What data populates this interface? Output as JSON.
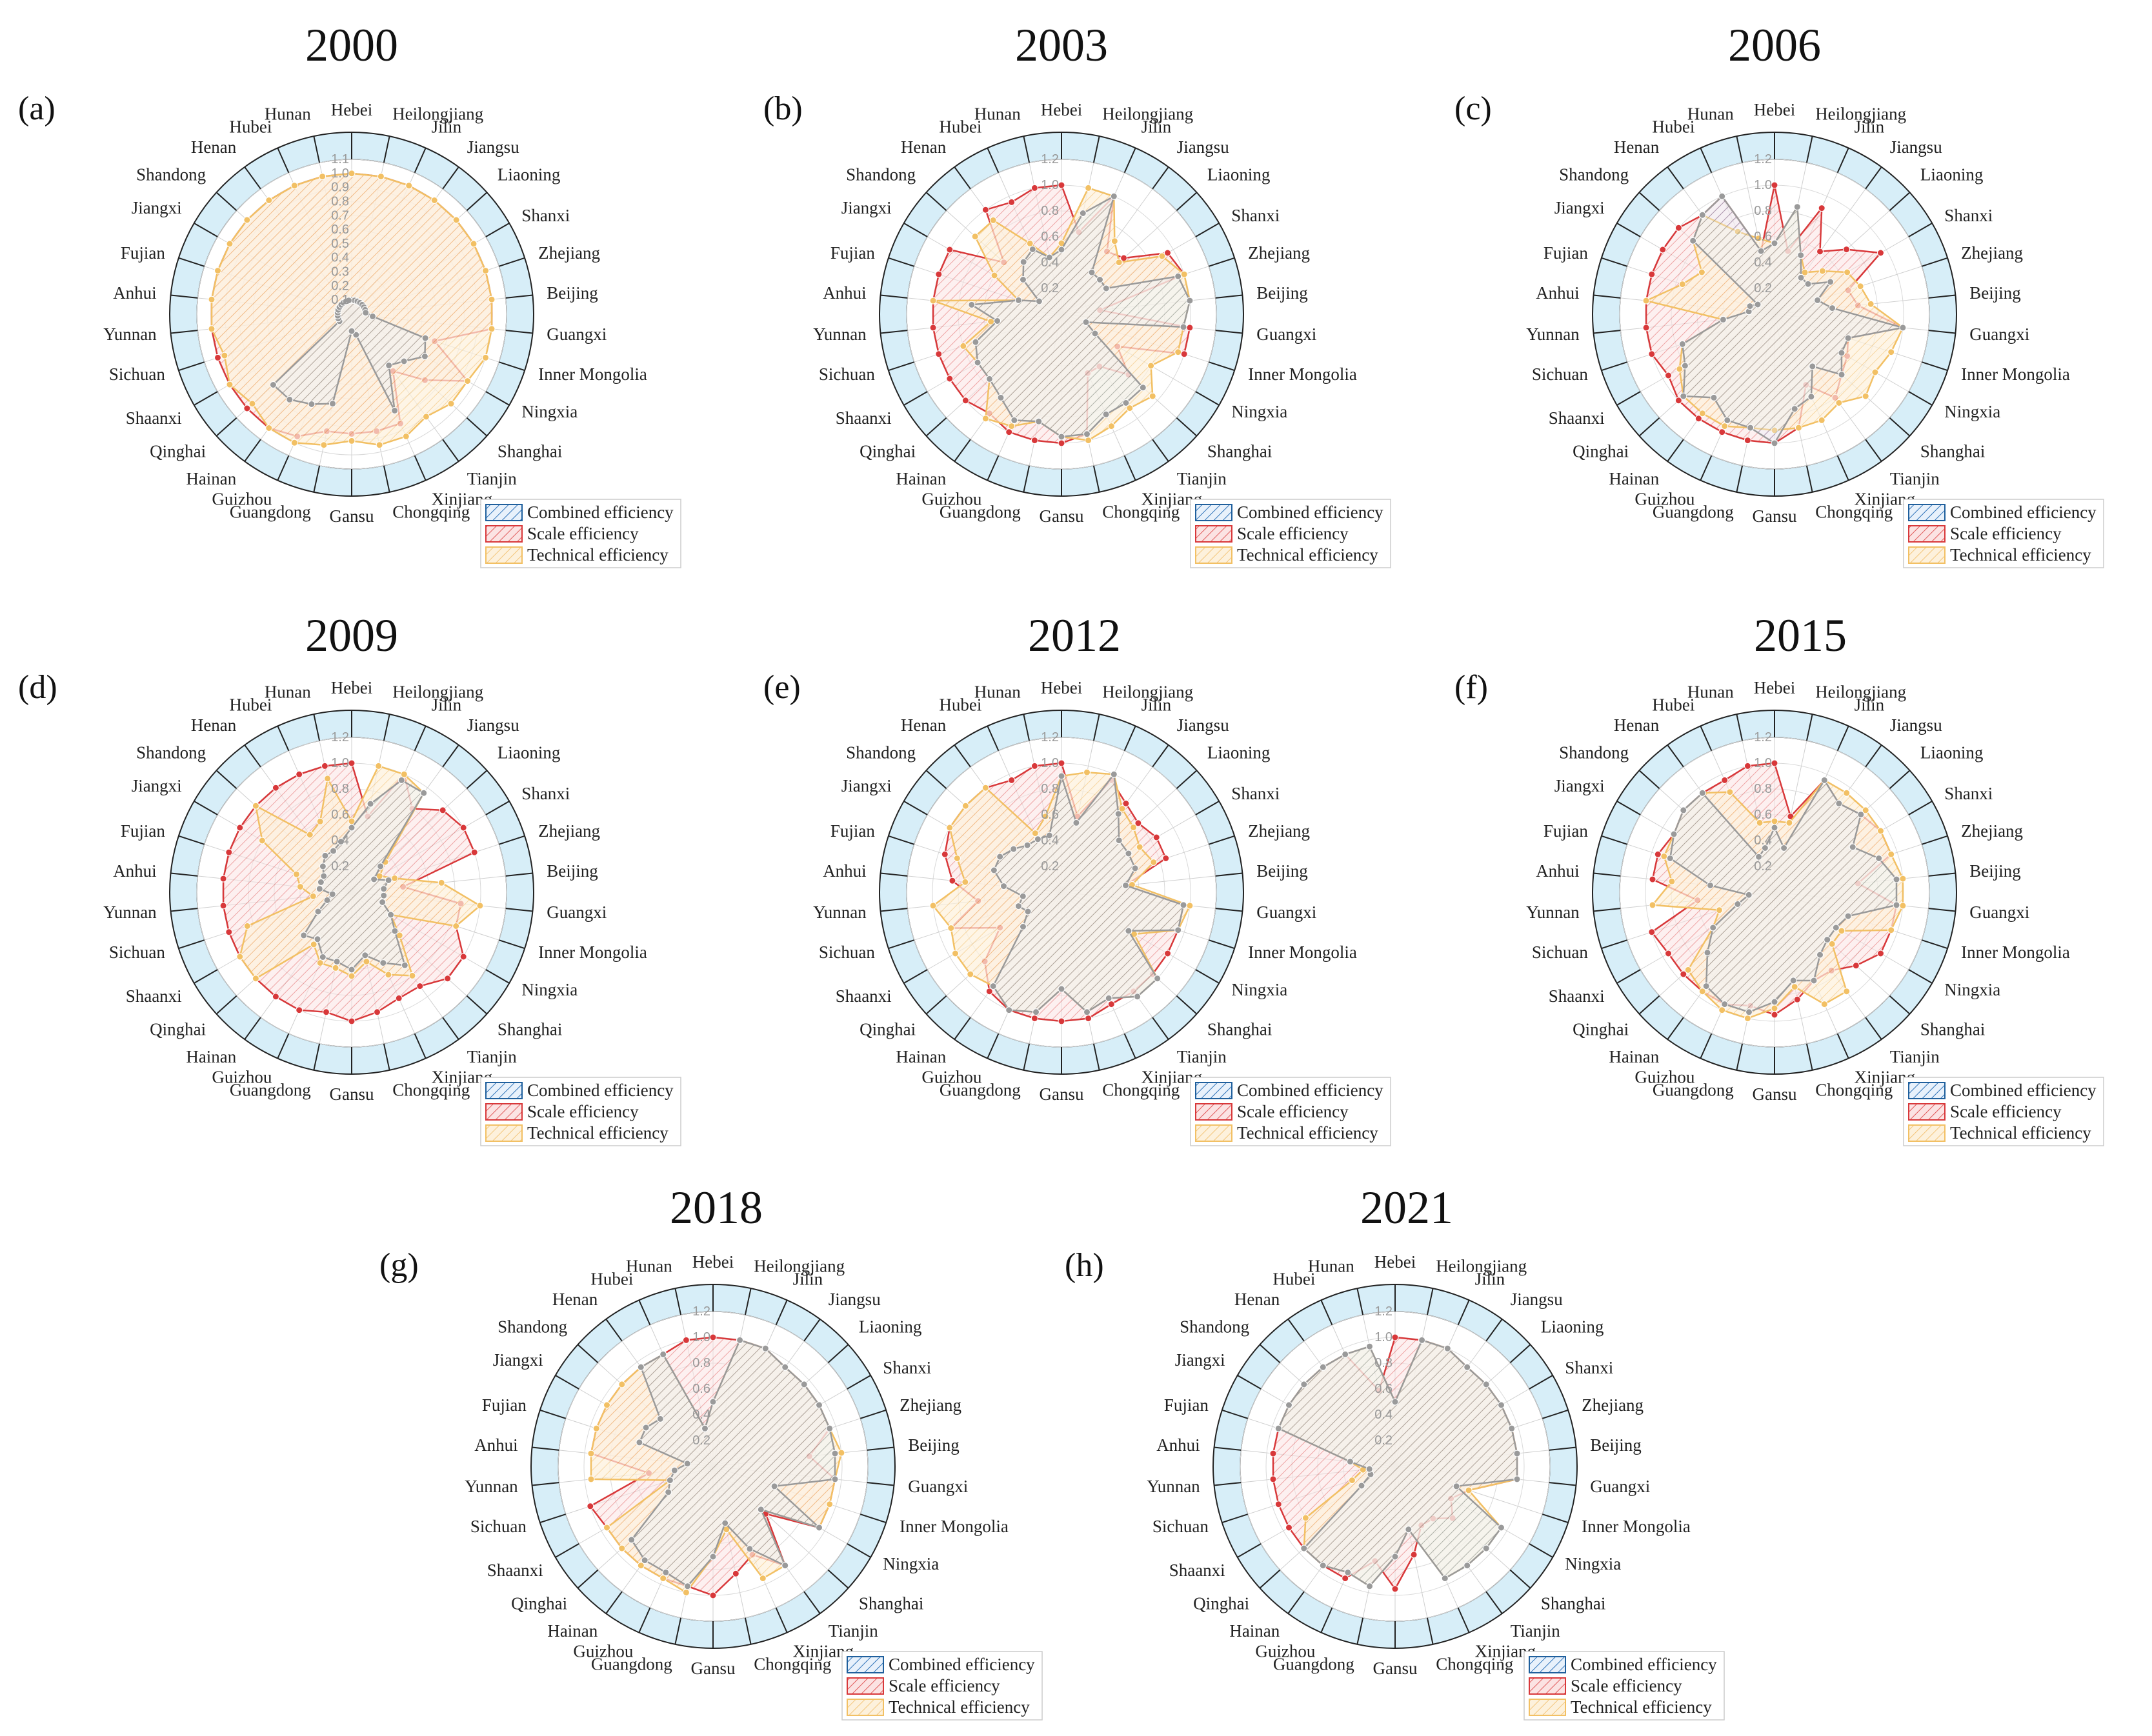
{
  "figure": {
    "palette": {
      "background_ring": "#d7eef8",
      "combined": "#1f5f9c",
      "scale": "#d8383a",
      "technical": "#f2c064",
      "combined_dot": "#9a9a9a"
    }
  },
  "chart_data": {
    "type": "radar",
    "categories": [
      "Hebei",
      "Heilongjiang",
      "Jilin",
      "Jiangsu",
      "Liaoning",
      "Shanxi",
      "Zhejiang",
      "Beijing",
      "Guangxi",
      "Inner Mongolia",
      "Ningxia",
      "Shanghai",
      "Tianjin",
      "Xinjiang",
      "Chongqing",
      "Gansu",
      "Guangdong",
      "Guizhou",
      "Hainan",
      "Qinghai",
      "Shaanxi",
      "Sichuan",
      "Yunnan",
      "Anhui",
      "Fujian",
      "Jiangxi",
      "Shandong",
      "Henan",
      "Hubei",
      "Hunan"
    ],
    "legend": [
      "Combined efficiency",
      "Scale efficiency",
      "Technical efficiency"
    ],
    "panels": [
      {
        "label": "(a)",
        "title": "2000",
        "rmax": 1.1,
        "ticks": [
          "0.1",
          "0.2",
          "0.3",
          "0.4",
          "0.5",
          "0.6",
          "0.7",
          "0.8",
          "0.9",
          "1.0",
          "1.1"
        ],
        "series": [
          {
            "name": "Combined efficiency",
            "values": [
              0.1,
              0.1,
              0.1,
              0.1,
              0.1,
              0.1,
              0.1,
              0.1,
              0.15,
              0.55,
              0.6,
              0.5,
              0.45,
              0.75,
              0.15,
              0.12,
              0.65,
              0.7,
              0.75,
              0.75,
              0.1,
              0.1,
              0.1,
              0.1,
              0.1,
              0.1,
              0.1,
              0.1,
              0.1,
              0.1
            ]
          },
          {
            "name": "Scale efficiency",
            "values": [
              1.0,
              1.0,
              1.0,
              1.0,
              1.0,
              1.0,
              1.0,
              1.0,
              1.0,
              0.62,
              0.95,
              0.7,
              0.5,
              0.85,
              0.85,
              0.85,
              0.85,
              0.95,
              1.0,
              1.0,
              1.0,
              1.0,
              1.0,
              1.0,
              1.0,
              1.0,
              1.0,
              1.0,
              1.0,
              1.0
            ]
          },
          {
            "name": "Technical efficiency",
            "values": [
              1.0,
              1.0,
              1.0,
              1.0,
              1.0,
              1.0,
              1.0,
              1.0,
              1.0,
              1.0,
              0.95,
              0.95,
              0.9,
              0.95,
              0.95,
              0.9,
              0.95,
              1.0,
              1.0,
              0.95,
              1.0,
              0.95,
              1.0,
              1.0,
              1.0,
              1.0,
              1.0,
              1.0,
              1.0,
              1.0
            ]
          }
        ]
      },
      {
        "label": "(b)",
        "title": "2003",
        "rmax": 1.2,
        "ticks": [
          "0.2",
          "0.4",
          "0.6",
          "0.8",
          "1.0",
          "1.2"
        ],
        "series": [
          {
            "name": "Combined efficiency",
            "values": [
              0.5,
              0.8,
              1.0,
              0.4,
              0.4,
              0.4,
              0.95,
              1.0,
              0.95,
              0.2,
              0.3,
              0.85,
              0.85,
              0.85,
              0.95,
              0.95,
              0.85,
              0.9,
              0.8,
              0.75,
              0.75,
              0.7,
              0.5,
              0.7,
              0.35,
              0.2,
              0.4,
              0.5,
              0.55,
              0.45
            ]
          },
          {
            "name": "Scale efficiency",
            "values": [
              1.0,
              0.65,
              1.0,
              0.6,
              0.65,
              0.95,
              1.0,
              0.3,
              1.0,
              1.0,
              0.5,
              0.7,
              0.5,
              0.5,
              0.95,
              1.0,
              1.0,
              1.0,
              0.95,
              1.0,
              1.0,
              1.0,
              1.0,
              1.0,
              1.0,
              1.0,
              0.6,
              1.0,
              0.95,
              1.0
            ]
          },
          {
            "name": "Technical efficiency",
            "values": [
              0.55,
              1.0,
              1.0,
              0.7,
              0.6,
              0.9,
              1.0,
              1.0,
              0.95,
              0.95,
              0.8,
              0.95,
              0.9,
              0.95,
              1.0,
              0.95,
              0.85,
              0.95,
              1.0,
              0.75,
              0.75,
              0.8,
              0.55,
              1.0,
              0.35,
              0.6,
              0.9,
              0.9,
              0.6,
              0.45
            ]
          }
        ]
      },
      {
        "label": "(c)",
        "title": "2006",
        "rmax": 1.2,
        "ticks": [
          "0.2",
          "0.4",
          "0.6",
          "0.8",
          "1.0",
          "1.2"
        ],
        "series": [
          {
            "name": "Combined efficiency",
            "values": [
              0.55,
              0.85,
              0.5,
              0.35,
              0.35,
              0.5,
              0.35,
              0.45,
              1.0,
              0.6,
              0.6,
              0.7,
              0.5,
              0.7,
              0.75,
              1.0,
              0.9,
              0.9,
              0.8,
              0.95,
              0.8,
              0.75,
              0.4,
              0.2,
              0.2,
              0.15,
              0.85,
              0.95,
              1.0,
              0.5
            ]
          },
          {
            "name": "Scale efficiency",
            "values": [
              1.0,
              0.5,
              0.9,
              0.6,
              0.75,
              0.95,
              0.6,
              0.65,
              1.0,
              0.6,
              0.65,
              0.7,
              0.8,
              0.6,
              0.9,
              1.0,
              1.0,
              1.0,
              1.0,
              1.0,
              0.95,
              1.0,
              1.0,
              1.0,
              1.0,
              1.0,
              1.0,
              0.95,
              1.0,
              0.5
            ]
          },
          {
            "name": "Technical efficiency",
            "values": [
              0.55,
              0.85,
              0.5,
              0.4,
              0.5,
              0.65,
              0.7,
              0.75,
              1.0,
              0.95,
              0.9,
              0.95,
              0.85,
              0.9,
              0.9,
              0.9,
              0.9,
              0.95,
              0.95,
              0.95,
              0.85,
              0.75,
              0.4,
              1.0,
              0.75,
              0.65,
              0.85,
              0.95,
              0.7,
              0.6
            ]
          }
        ]
      },
      {
        "label": "(d)",
        "title": "2009",
        "rmax": 1.2,
        "ticks": [
          "0.2",
          "0.4",
          "0.6",
          "0.8",
          "1.0",
          "1.2"
        ],
        "series": [
          {
            "name": "Combined efficiency",
            "values": [
              0.5,
              0.7,
              0.95,
              0.95,
              0.3,
              0.2,
              0.3,
              0.25,
              0.25,
              0.25,
              0.35,
              0.45,
              0.7,
              0.6,
              0.5,
              0.6,
              0.55,
              0.55,
              0.45,
              0.5,
              0.3,
              0.2,
              0.15,
              0.25,
              0.25,
              0.25,
              0.3,
              0.35,
              0.35,
              0.4
            ]
          },
          {
            "name": "Scale efficiency",
            "values": [
              1.0,
              0.6,
              1.0,
              0.8,
              0.95,
              1.0,
              1.0,
              0.4,
              0.85,
              0.85,
              1.0,
              1.0,
              0.9,
              0.9,
              0.95,
              1.0,
              0.95,
              1.0,
              1.0,
              1.0,
              1.0,
              1.0,
              1.0,
              1.0,
              1.0,
              1.0,
              1.0,
              1.0,
              1.0,
              1.0
            ]
          },
          {
            "name": "Technical efficiency",
            "values": [
              0.55,
              1.0,
              1.0,
              0.95,
              0.35,
              0.25,
              0.35,
              0.7,
              1.0,
              0.85,
              0.35,
              0.5,
              0.8,
              0.7,
              0.55,
              0.65,
              0.6,
              0.6,
              0.5,
              1.0,
              1.0,
              0.85,
              0.3,
              0.4,
              0.45,
              0.8,
              1.0,
              0.55,
              0.6,
              0.9
            ]
          }
        ]
      },
      {
        "label": "(e)",
        "title": "2012",
        "rmax": 1.2,
        "ticks": [
          "0.2",
          "0.4",
          "0.6",
          "0.8",
          "1.0",
          "1.2"
        ],
        "series": [
          {
            "name": "Combined efficiency",
            "values": [
              0.9,
              0.55,
              1.0,
              0.75,
              0.6,
              0.6,
              0.6,
              0.5,
              0.95,
              0.95,
              0.6,
              1.0,
              1.0,
              0.9,
              0.95,
              0.75,
              0.95,
              1.0,
              0.9,
              0.4,
              0.3,
              0.35,
              0.3,
              0.45,
              0.55,
              0.55,
              0.5,
              0.45,
              0.45,
              0.45
            ]
          },
          {
            "name": "Scale efficiency",
            "values": [
              1.0,
              0.6,
              0.95,
              0.85,
              0.8,
              0.85,
              0.85,
              0.5,
              0.95,
              0.95,
              0.95,
              0.95,
              0.95,
              0.95,
              1.0,
              1.0,
              1.0,
              1.0,
              0.95,
              0.8,
              0.55,
              0.9,
              0.65,
              0.85,
              0.95,
              1.0,
              1.0,
              1.0,
              0.95,
              1.0
            ]
          },
          {
            "name": "Technical efficiency",
            "values": [
              0.9,
              0.95,
              1.0,
              0.8,
              0.75,
              0.7,
              0.75,
              0.55,
              1.0,
              0.95,
              0.65,
              1.0,
              1.0,
              0.9,
              0.95,
              0.75,
              0.95,
              1.0,
              0.9,
              0.95,
              0.95,
              0.9,
              1.0,
              0.75,
              0.85,
              1.0,
              1.0,
              1.0,
              0.5,
              0.6
            ]
          }
        ]
      },
      {
        "label": "(f)",
        "title": "2015",
        "rmax": 1.2,
        "ticks": [
          "0.2",
          "0.4",
          "0.6",
          "0.8",
          "1.0",
          "1.2"
        ],
        "series": [
          {
            "name": "Combined efficiency",
            "values": [
              0.5,
              0.35,
              0.95,
              0.85,
              0.9,
              0.7,
              0.85,
              0.95,
              0.95,
              0.6,
              0.55,
              0.55,
              0.6,
              0.75,
              0.7,
              0.85,
              0.95,
              0.95,
              0.9,
              0.7,
              0.55,
              0.3,
              0.2,
              0.5,
              0.85,
              0.9,
              0.95,
              0.95,
              0.3,
              0.35
            ]
          },
          {
            "name": "Scale efficiency",
            "values": [
              1.0,
              0.6,
              0.95,
              0.85,
              0.9,
              0.95,
              0.95,
              0.65,
              0.95,
              0.95,
              0.95,
              0.85,
              0.75,
              0.75,
              0.85,
              0.95,
              0.9,
              0.95,
              0.95,
              0.95,
              0.95,
              1.0,
              0.6,
              0.95,
              0.95,
              0.9,
              0.95,
              0.95,
              0.95,
              1.0
            ]
          },
          {
            "name": "Technical efficiency",
            "values": [
              0.55,
              0.55,
              0.95,
              0.95,
              0.95,
              0.95,
              0.95,
              1.0,
              1.0,
              0.95,
              0.6,
              0.6,
              0.95,
              0.95,
              0.75,
              0.9,
              1.0,
              1.0,
              0.95,
              0.9,
              0.55,
              0.45,
              0.95,
              0.8,
              0.9,
              0.9,
              0.95,
              0.95,
              0.85,
              0.55
            ]
          }
        ]
      },
      {
        "label": "(g)",
        "title": "2018",
        "rmax": 1.2,
        "ticks": [
          "0.2",
          "0.4",
          "0.6",
          "0.8",
          "1.0",
          "1.2"
        ],
        "series": [
          {
            "name": "Combined efficiency",
            "values": [
              0.5,
              1.0,
              1.0,
              0.95,
              0.95,
              0.95,
              0.95,
              0.95,
              0.95,
              0.5,
              0.95,
              0.5,
              0.95,
              0.7,
              0.45,
              0.7,
              0.95,
              0.9,
              0.9,
              0.85,
              0.4,
              0.35,
              0.3,
              0.2,
              0.6,
              0.6,
              0.55,
              0.95,
              0.95,
              0.3
            ]
          },
          {
            "name": "Scale efficiency",
            "values": [
              1.0,
              1.0,
              1.0,
              0.95,
              0.95,
              0.95,
              0.95,
              0.75,
              0.95,
              0.95,
              0.95,
              0.55,
              0.95,
              0.75,
              0.85,
              1.0,
              0.95,
              0.95,
              0.95,
              0.95,
              0.95,
              1.0,
              0.5,
              0.95,
              0.95,
              0.95,
              0.95,
              0.95,
              0.95,
              1.0
            ]
          },
          {
            "name": "Technical efficiency",
            "values": [
              0.5,
              1.0,
              1.0,
              0.95,
              0.95,
              0.95,
              0.95,
              1.0,
              0.95,
              0.95,
              0.95,
              0.5,
              0.95,
              0.95,
              0.5,
              0.7,
              1.0,
              0.95,
              0.95,
              0.95,
              0.95,
              0.35,
              0.95,
              0.95,
              0.95,
              0.95,
              0.95,
              0.95,
              0.95,
              0.3
            ]
          }
        ]
      },
      {
        "label": "(h)",
        "title": "2021",
        "rmax": 1.2,
        "ticks": [
          "0.2",
          "0.4",
          "0.6",
          "0.8",
          "1.0",
          "1.2"
        ],
        "series": [
          {
            "name": "Combined efficiency",
            "values": [
              0.5,
              1.0,
              1.0,
              0.95,
              0.95,
              0.95,
              0.95,
              0.95,
              0.95,
              0.5,
              0.95,
              0.95,
              0.95,
              0.95,
              0.5,
              0.7,
              0.95,
              0.9,
              0.95,
              0.95,
              0.3,
              0.2,
              0.2,
              0.35,
              0.95,
              0.95,
              0.95,
              0.95,
              0.95,
              0.95
            ]
          },
          {
            "name": "Scale efficiency",
            "values": [
              1.0,
              1.0,
              1.0,
              0.95,
              0.95,
              0.95,
              0.95,
              0.95,
              0.95,
              0.6,
              0.5,
              0.6,
              0.5,
              0.5,
              0.7,
              0.95,
              0.75,
              0.95,
              0.95,
              0.95,
              0.95,
              0.95,
              0.95,
              0.95,
              0.95,
              0.95,
              0.95,
              0.95,
              0.95,
              0.6
            ]
          },
          {
            "name": "Technical efficiency",
            "values": [
              0.5,
              1.0,
              1.0,
              0.95,
              0.95,
              0.95,
              0.95,
              0.95,
              0.95,
              0.6,
              0.95,
              0.95,
              0.95,
              0.95,
              0.5,
              0.7,
              0.95,
              0.9,
              0.95,
              0.95,
              0.8,
              0.35,
              0.25,
              0.35,
              0.95,
              0.95,
              0.95,
              0.95,
              0.95,
              0.95
            ]
          }
        ]
      }
    ]
  }
}
